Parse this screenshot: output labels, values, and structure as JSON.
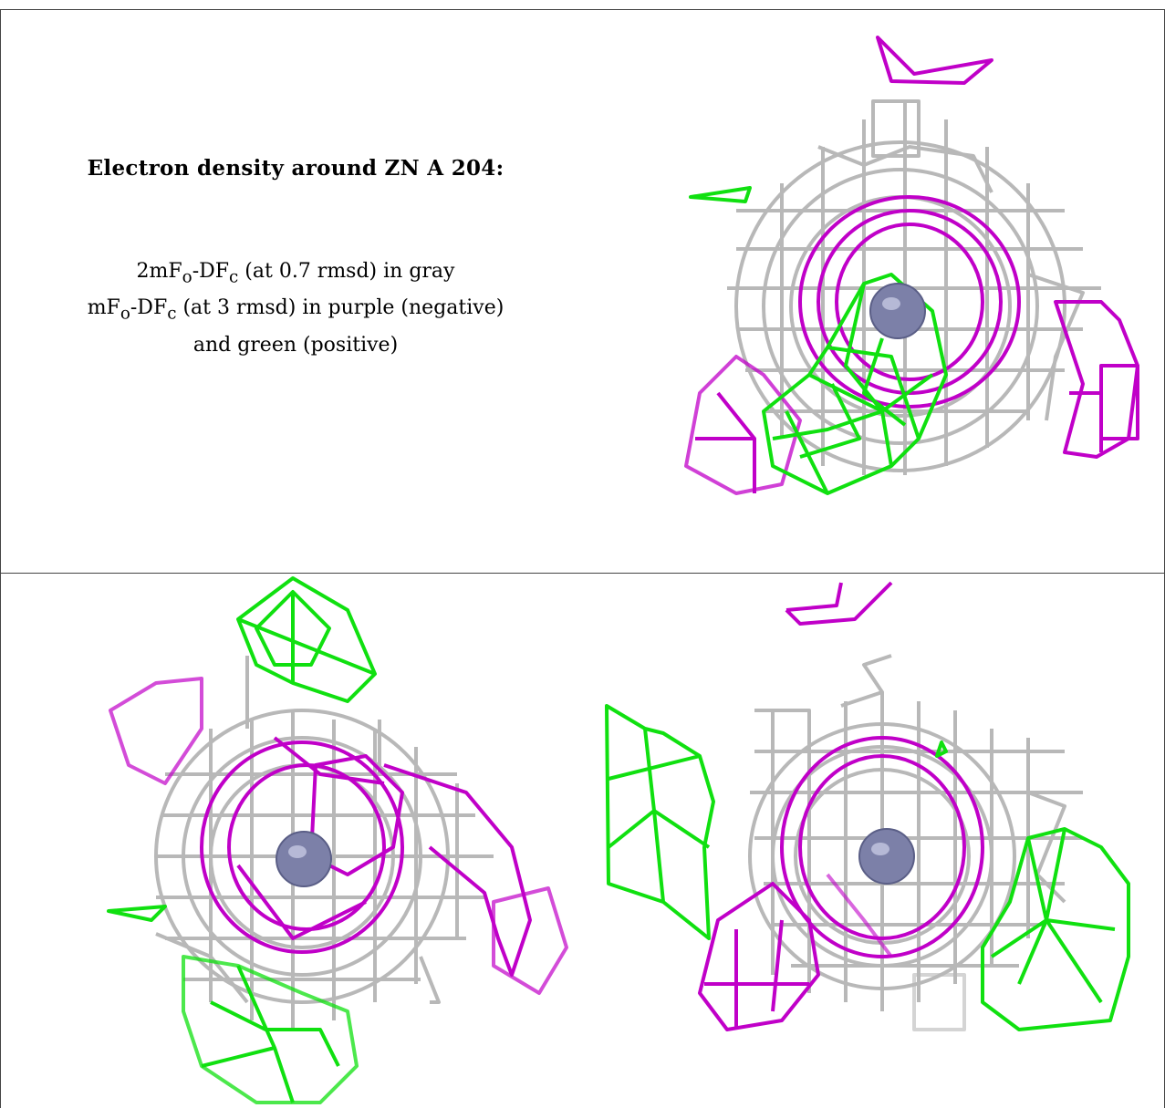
{
  "caption": {
    "title": "Electron density around ZN A 204:",
    "line1": {
      "a": "2mF",
      "sub1": "o",
      "b": "-DF",
      "sub2": "c",
      "c": " (at 0.7 rmsd) in gray"
    },
    "line2": {
      "a": "mF",
      "sub1": "o",
      "b": "-DF",
      "sub2": "c",
      "c": " (at 3 rmsd) in purple (negative)"
    },
    "line3": "and green (positive)"
  },
  "colors": {
    "gray_mesh": "#b8b8b8",
    "purple_mesh": "#c000c8",
    "green_mesh": "#10e010",
    "zn_atom": "#7c80a8",
    "border": "#444444"
  },
  "panels": [
    {
      "name": "view-top-right",
      "atom": "ZN A 204"
    },
    {
      "name": "view-bottom-left",
      "atom": "ZN A 204"
    },
    {
      "name": "view-bottom-right",
      "atom": "ZN A 204"
    }
  ]
}
